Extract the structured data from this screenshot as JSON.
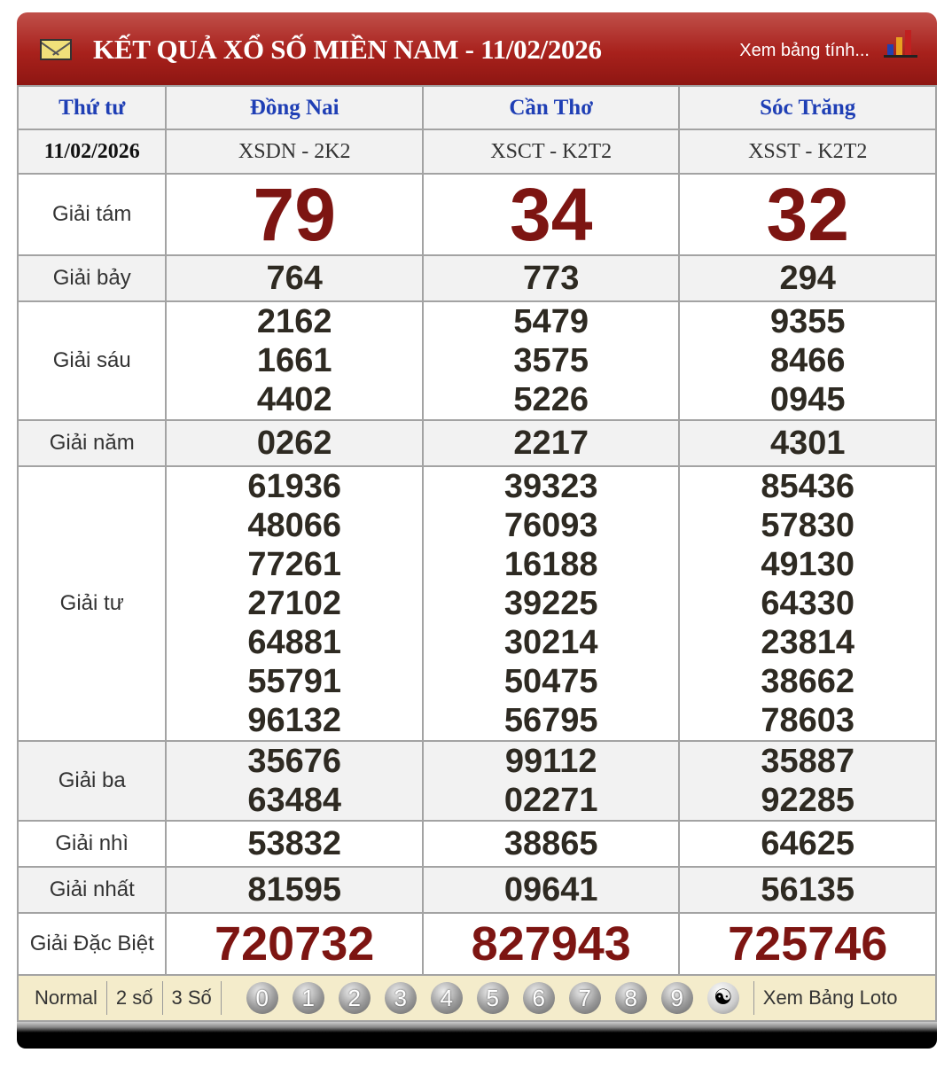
{
  "header": {
    "title": "KẾT QUẢ XỔ SỐ MIỀN NAM - 11/02/2026",
    "link": "Xem bảng tính...",
    "accent": "#a8211c"
  },
  "columns": {
    "day": "Thứ tư",
    "provinces": [
      "Đồng Nai",
      "Cần Thơ",
      "Sóc Trăng"
    ]
  },
  "date_row": {
    "date": "11/02/2026",
    "codes": [
      "XSDN - 2K2",
      "XSCT - K2T2",
      "XSST - K2T2"
    ]
  },
  "prizes": [
    {
      "label": "Giải tám",
      "results": [
        [
          "79"
        ],
        [
          "34"
        ],
        [
          "32"
        ]
      ]
    },
    {
      "label": "Giải bảy",
      "results": [
        [
          "764"
        ],
        [
          "773"
        ],
        [
          "294"
        ]
      ]
    },
    {
      "label": "Giải sáu",
      "results": [
        [
          "2162",
          "1661",
          "4402"
        ],
        [
          "5479",
          "3575",
          "5226"
        ],
        [
          "9355",
          "8466",
          "0945"
        ]
      ]
    },
    {
      "label": "Giải năm",
      "results": [
        [
          "0262"
        ],
        [
          "2217"
        ],
        [
          "4301"
        ]
      ]
    },
    {
      "label": "Giải tư",
      "results": [
        [
          "61936",
          "48066",
          "77261",
          "27102",
          "64881",
          "55791",
          "96132"
        ],
        [
          "39323",
          "76093",
          "16188",
          "39225",
          "30214",
          "50475",
          "56795"
        ],
        [
          "85436",
          "57830",
          "49130",
          "64330",
          "23814",
          "38662",
          "78603"
        ]
      ]
    },
    {
      "label": "Giải ba",
      "results": [
        [
          "35676",
          "63484"
        ],
        [
          "99112",
          "02271"
        ],
        [
          "35887",
          "92285"
        ]
      ]
    },
    {
      "label": "Giải nhì",
      "results": [
        [
          "53832"
        ],
        [
          "38865"
        ],
        [
          "64625"
        ]
      ]
    },
    {
      "label": "Giải nhất",
      "results": [
        [
          "81595"
        ],
        [
          "09641"
        ],
        [
          "56135"
        ]
      ]
    },
    {
      "label": "Giải Đặc Biệt",
      "results": [
        [
          "720732"
        ],
        [
          "827943"
        ],
        [
          "725746"
        ]
      ]
    }
  ],
  "footer": {
    "modes": [
      "Normal",
      "2 số",
      "3 Số"
    ],
    "digits": [
      "0",
      "1",
      "2",
      "3",
      "4",
      "5",
      "6",
      "7",
      "8",
      "9"
    ],
    "loto_link": "Xem Bảng Loto"
  }
}
